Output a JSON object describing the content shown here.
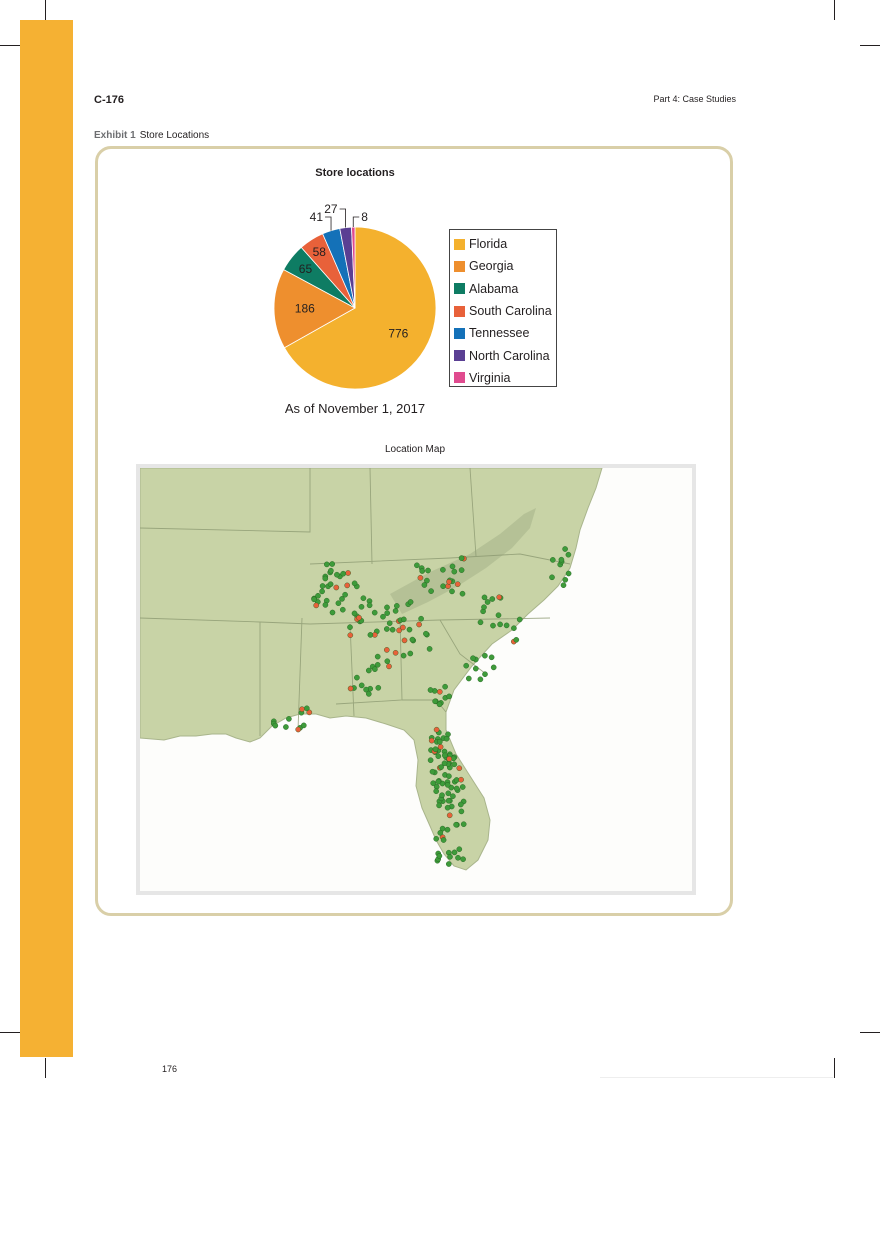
{
  "header": {
    "left": "C-176",
    "right": "Part 4: Case Studies"
  },
  "exhibit": {
    "number": "Exhibit 1",
    "title": "Store Locations"
  },
  "chart_data": {
    "type": "pie",
    "title": "Store locations",
    "subtitle": "As of November 1, 2017",
    "categories": [
      "Florida",
      "Georgia",
      "Alabama",
      "South Carolina",
      "Tennessee",
      "North Carolina",
      "Virginia"
    ],
    "values": [
      776,
      186,
      65,
      58,
      41,
      27,
      8
    ],
    "colors": [
      "#f4b12e",
      "#ee8f2e",
      "#0e7c63",
      "#e8613a",
      "#1471b8",
      "#5a3f93",
      "#e04b8f"
    ],
    "legend": "right"
  },
  "map": {
    "title": "Location Map"
  },
  "footer": {
    "page_number": "176"
  }
}
